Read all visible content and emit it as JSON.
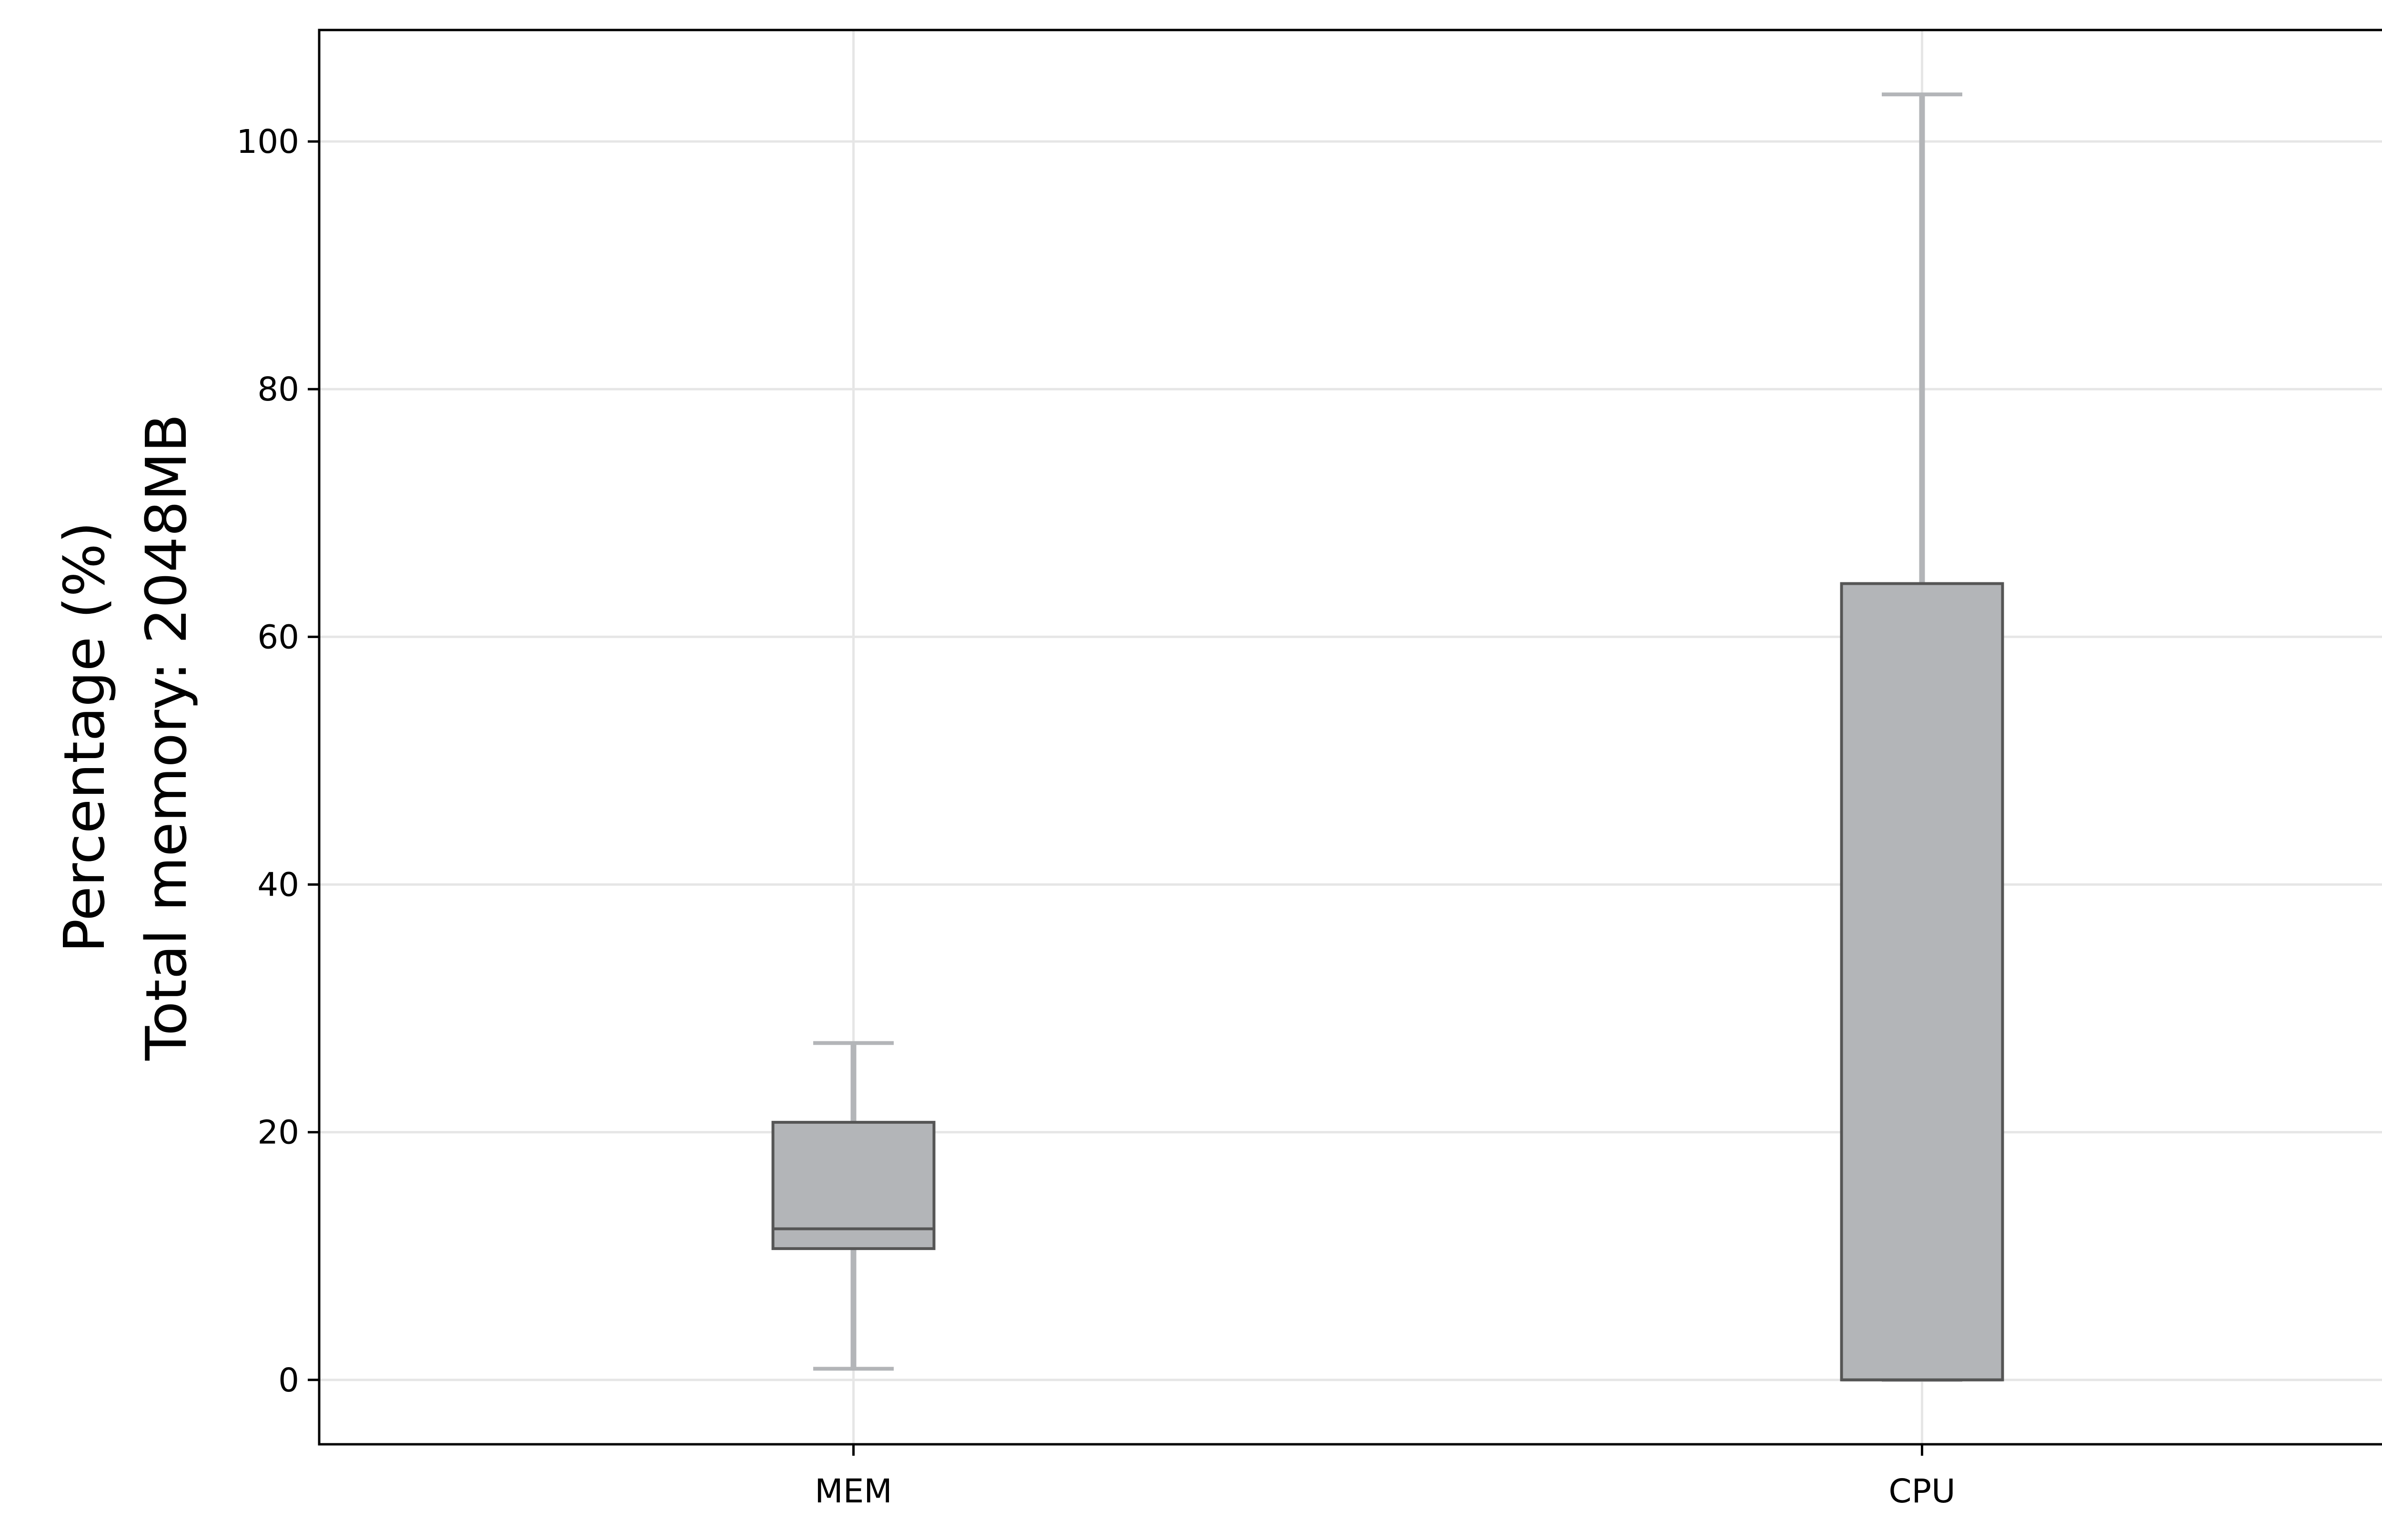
{
  "chart_data": {
    "type": "box",
    "title": "",
    "xlabel": "",
    "ylabel_lines": [
      "Percentage (%)",
      "Total memory: 2048MB"
    ],
    "categories": [
      "MEM",
      "CPU"
    ],
    "boxes": [
      {
        "category": "MEM",
        "whisker_low": 0.9,
        "q1": 10.6,
        "median": 12.2,
        "q3": 20.8,
        "whisker_high": 27.2
      },
      {
        "category": "CPU",
        "whisker_low": 0.0,
        "q1": 0.0,
        "median": 0.0,
        "q3": 64.3,
        "whisker_high": 103.8
      }
    ],
    "yticks": [
      0,
      20,
      40,
      60,
      80,
      100
    ],
    "ylim": [
      -5.2,
      109.0
    ],
    "grid": true,
    "colors": {
      "box_fill": "#b3b5b8",
      "box_edge": "#555555",
      "whisker": "#b3b5b8",
      "median": "#555555"
    }
  }
}
